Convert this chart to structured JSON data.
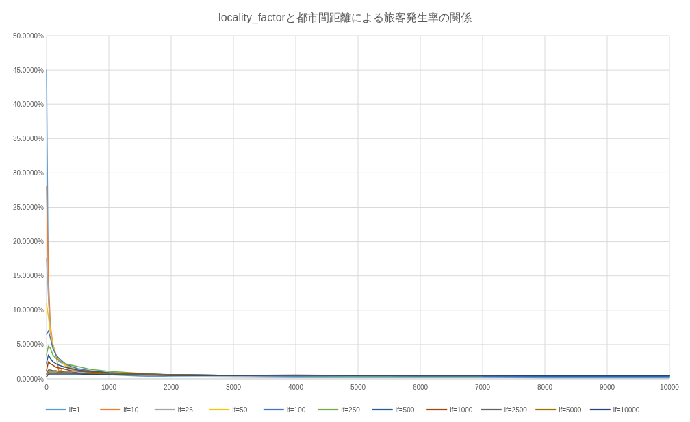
{
  "chart_data": {
    "type": "line",
    "title": "locality_factorと都市間距離による旅客発生率の関係",
    "x": [
      0,
      30,
      60,
      100,
      150,
      200,
      300,
      400,
      500,
      700,
      1000,
      1500,
      2000,
      3000,
      4000,
      5000,
      6000,
      7000,
      8000,
      9000,
      10000
    ],
    "xlim": [
      0,
      10000
    ],
    "xticks": [
      0,
      1000,
      2000,
      3000,
      4000,
      5000,
      6000,
      7000,
      8000,
      9000,
      10000
    ],
    "ylim": [
      0,
      50
    ],
    "yticks": [
      {
        "value": 0,
        "label": "0.0000%"
      },
      {
        "value": 5,
        "label": "5.0000%"
      },
      {
        "value": 10,
        "label": "10.0000%"
      },
      {
        "value": 15,
        "label": "15.0000%"
      },
      {
        "value": 20,
        "label": "20.0000%"
      },
      {
        "value": 25,
        "label": "25.0000%"
      },
      {
        "value": 30,
        "label": "30.0000%"
      },
      {
        "value": 35,
        "label": "35.0000%"
      },
      {
        "value": 40,
        "label": "40.0000%"
      },
      {
        "value": 45,
        "label": "45.0000%"
      },
      {
        "value": 50,
        "label": "50.0000%"
      }
    ],
    "grid": true,
    "legend": "bottom",
    "marker": "none",
    "line_style": "solid",
    "series": [
      {
        "name": "lf=1",
        "color": "#5b9bd5",
        "values": [
          45,
          12,
          7,
          5,
          3.5,
          2.5,
          2,
          1.5,
          1.2,
          0.9,
          0.6,
          0.4,
          0.3,
          0.25,
          0.2,
          0.2,
          0.2,
          0.2,
          0.15,
          0.15,
          0.15
        ]
      },
      {
        "name": "lf=10",
        "color": "#ed7d31",
        "values": [
          28,
          15,
          8,
          5,
          3.5,
          1,
          1.8,
          1.4,
          1.2,
          null,
          null,
          null,
          null,
          null,
          null,
          null,
          null,
          null,
          null,
          null,
          null
        ]
      },
      {
        "name": "lf=25",
        "color": "#a5a5a5",
        "values": [
          17.5,
          12,
          7,
          5,
          3.5,
          2.6,
          2,
          1.6,
          1.3,
          1,
          0.8,
          0.6,
          0.5,
          0.4,
          0.35,
          0.3,
          0.3,
          0.3,
          0.3,
          0.3,
          0.3
        ]
      },
      {
        "name": "lf=50",
        "color": "#ffc000",
        "values": [
          11,
          9,
          7,
          5,
          3.5,
          2.8,
          2,
          1.6,
          1.4,
          null,
          null,
          null,
          null,
          null,
          null,
          null,
          null,
          null,
          null,
          null,
          null
        ]
      },
      {
        "name": "lf=100",
        "color": "#4472c4",
        "values": [
          6.5,
          7,
          6,
          4.5,
          3.5,
          3,
          2.2,
          1.8,
          1.5,
          1.2,
          0.9,
          0.7,
          0.6,
          0.5,
          0.4,
          0.4,
          0.35,
          0.35,
          0.35,
          0.35,
          0.35
        ]
      },
      {
        "name": "lf=250",
        "color": "#70ad47",
        "values": [
          3.5,
          4.8,
          4.5,
          3.5,
          3,
          2.7,
          2.2,
          2,
          1.8,
          1.4,
          1.1,
          0.8,
          0.6,
          0.5,
          0.45,
          0.4,
          0.4,
          0.4,
          null,
          null,
          null
        ]
      },
      {
        "name": "lf=500",
        "color": "#255e91",
        "values": [
          2.3,
          3.5,
          3,
          2.5,
          2.2,
          2,
          1.7,
          1.5,
          1.3,
          1.1,
          0.9,
          0.7,
          0.6,
          0.5,
          0.5,
          0.5,
          0.45,
          0.45,
          0.45,
          0.45,
          0.45
        ]
      },
      {
        "name": "lf=1000",
        "color": "#9e480e",
        "values": [
          1.2,
          2.5,
          2.2,
          2,
          1.7,
          1.6,
          1.4,
          1.2,
          1.1,
          1,
          0.8,
          0.7,
          0.6,
          0.5,
          null,
          null,
          null,
          null,
          null,
          null,
          null
        ]
      },
      {
        "name": "lf=2500",
        "color": "#636363",
        "values": [
          0.8,
          1.3,
          1.3,
          1.2,
          1.2,
          1.1,
          1,
          1,
          0.9,
          0.8,
          0.7,
          0.6,
          0.55,
          0.5,
          0.5,
          0.5,
          0.45,
          0.45,
          0.45,
          0.45,
          0.45
        ]
      },
      {
        "name": "lf=5000",
        "color": "#997300",
        "values": [
          0.6,
          1,
          1,
          1,
          1,
          0.95,
          0.9,
          0.85,
          0.8,
          0.75,
          0.7,
          0.6,
          0.55,
          0.5,
          null,
          null,
          null,
          null,
          null,
          null,
          null
        ]
      },
      {
        "name": "lf=10000",
        "color": "#264478",
        "values": [
          0.3,
          0.7,
          0.7,
          0.7,
          0.7,
          0.7,
          0.7,
          0.7,
          0.7,
          0.65,
          0.6,
          0.55,
          0.5,
          0.5,
          0.55,
          0.5,
          0.5,
          0.5,
          0.45,
          0.45,
          0.45
        ]
      }
    ]
  }
}
